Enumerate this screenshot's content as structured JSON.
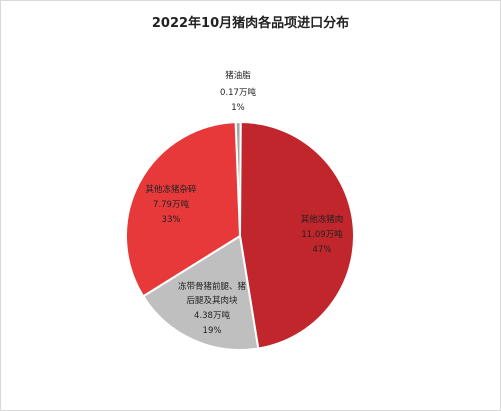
{
  "title": "2022年10月猪肉各品项进口分布",
  "chart_data": {
    "type": "pie",
    "title": "2022年10月猪肉各品项进口分布",
    "slices": [
      {
        "label": "猪油脂",
        "value_text": "0.17万吨",
        "percent_text": "1%",
        "value": 0.17,
        "color": "#a6a6a6"
      },
      {
        "label": "其他冻猪肉",
        "value_text": "11.09万吨",
        "percent_text": "47%",
        "value": 11.09,
        "color": "#c0262b"
      },
      {
        "label": "冻带骨猪前腿、猪后腿及其肉块",
        "label_lines": [
          "冻带骨猪前腿、猪",
          "后腿及其肉块"
        ],
        "value_text": "4.38万吨",
        "percent_text": "19%",
        "value": 4.38,
        "color": "#bfbfbf"
      },
      {
        "label": "其他冻猪杂碎",
        "value_text": "7.79万吨",
        "percent_text": "33%",
        "value": 7.79,
        "color": "#e8393a"
      }
    ]
  }
}
